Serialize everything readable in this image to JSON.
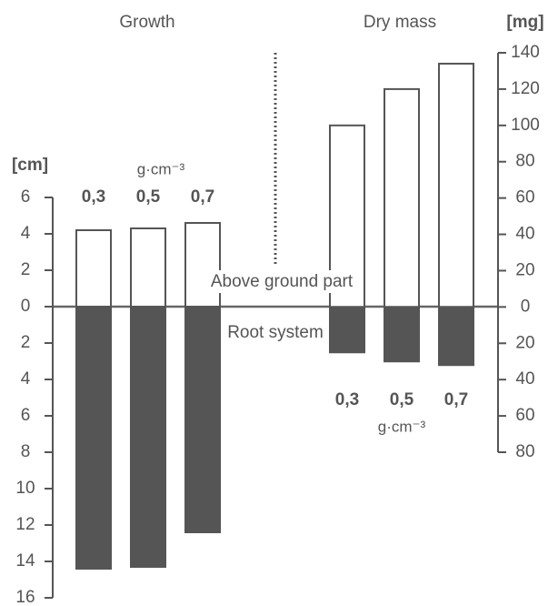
{
  "chart_data": [
    {
      "type": "bar",
      "title": "Growth",
      "ylabel": "[cm]",
      "category_unit": "g·cm⁻³",
      "categories": [
        "0,3",
        "0,5",
        "0,7"
      ],
      "series": [
        {
          "name": "Above ground part",
          "color": "#555555",
          "fill": "#ffffff",
          "values": [
            4.2,
            4.3,
            4.6
          ]
        },
        {
          "name": "Root system",
          "color": "#555555",
          "fill": "#555555",
          "values": [
            -14.4,
            -14.3,
            -12.4
          ]
        }
      ],
      "ylim": [
        -16,
        6
      ],
      "yticks": [
        {
          "value": -16,
          "label": "16"
        },
        {
          "value": -14,
          "label": "14"
        },
        {
          "value": -12,
          "label": "12"
        },
        {
          "value": -10,
          "label": "10"
        },
        {
          "value": -8,
          "label": "8"
        },
        {
          "value": -6,
          "label": "6"
        },
        {
          "value": -4,
          "label": "4"
        },
        {
          "value": -2,
          "label": "2"
        },
        0,
        2,
        4,
        6
      ]
    },
    {
      "type": "bar",
      "title": "Dry mass",
      "ylabel": "[mg]",
      "category_unit": "g·cm⁻³",
      "categories": [
        "0,3",
        "0,5",
        "0,7"
      ],
      "series": [
        {
          "color": "#555555",
          "fill": "#ffffff",
          "values": [
            100,
            120,
            134
          ]
        },
        {
          "color": "#555555",
          "fill": "#555555",
          "values": [
            -25,
            -30,
            -32
          ]
        }
      ],
      "ylim": [
        -80,
        140
      ],
      "yticks": [
        {
          "value": -80,
          "label": "80"
        },
        {
          "value": -60,
          "label": "60"
        },
        {
          "value": -40,
          "label": "40"
        },
        {
          "value": -20,
          "label": "20"
        },
        0,
        20,
        40,
        60,
        80,
        100,
        120,
        140
      ]
    }
  ]
}
